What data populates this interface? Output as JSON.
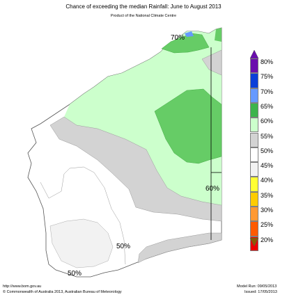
{
  "title": "Chance of exceeding the median Rainfall: June to August 2013",
  "subtitle": "Product of the National Climate Centre",
  "map_labels": {
    "north": "70%",
    "east": "60%",
    "centre": "50%",
    "south": "50%"
  },
  "legend": {
    "items": [
      {
        "label": "80%",
        "color": "#6a0dad"
      },
      {
        "label": "75%",
        "color": "#0b3fd8"
      },
      {
        "label": "70%",
        "color": "#6699ff"
      },
      {
        "label": "65%",
        "color": "#3cb44b"
      },
      {
        "label": "60%",
        "color": "#ccffcc"
      },
      {
        "label": "55%",
        "color": "#d3d3d3"
      },
      {
        "label": "50%",
        "color": "#ffffff"
      },
      {
        "label": "45%",
        "color": "#f2f2f2"
      },
      {
        "label": "40%",
        "color": "#ffff33"
      },
      {
        "label": "35%",
        "color": "#ffcc00"
      },
      {
        "label": "30%",
        "color": "#ff9933"
      },
      {
        "label": "25%",
        "color": "#ff5a00"
      },
      {
        "label": "20%",
        "color": "#ee0000"
      }
    ],
    "arrow_bottom_color": "#8b5a00"
  },
  "footer": {
    "url": "http://www.bom.gov.au",
    "copyright": "©  Commonwealth of Australia 2013, Australian Bureau of Meteorology",
    "model_run": "Model Run: 09/05/2013",
    "issued": "Issued: 17/05/2013"
  },
  "colors": {
    "dark_green": "#66cc66",
    "light_green": "#ccffcc",
    "grey": "#d3d3d3",
    "light_grey": "#f2f2f2",
    "border": "#555555"
  }
}
